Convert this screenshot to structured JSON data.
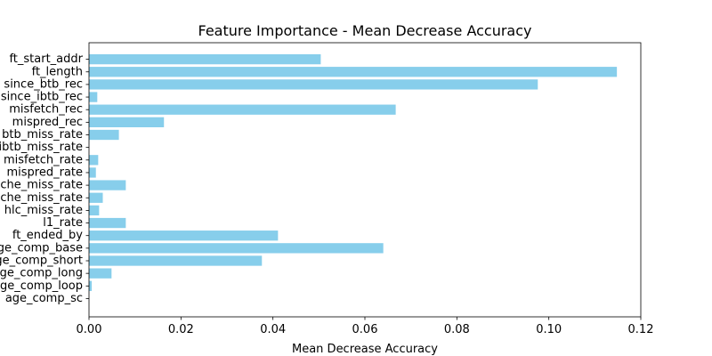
{
  "chart_data": {
    "type": "bar",
    "orientation": "horizontal",
    "title": "Feature Importance - Mean Decrease Accuracy",
    "xlabel": "Mean Decrease Accuracy",
    "ylabel": "",
    "categories": [
      "ft_start_addr",
      "ft_length",
      "since_btb_rec",
      "since_ibtb_rec",
      "misfetch_rec",
      "mispred_rec",
      "btb_miss_rate",
      "ibtb_miss_rate",
      "misfetch_rate",
      "mispred_rate",
      "cache_miss_rate",
      "cache_miss_rate",
      "hlc_miss_rate",
      "l1_rate",
      "ft_ended_by",
      "age_comp_base",
      "age_comp_short",
      "age_comp_long",
      "age_comp_loop",
      "age_comp_sc"
    ],
    "values": [
      0.0504,
      0.1148,
      0.0976,
      0.0018,
      0.0667,
      0.0163,
      0.0065,
      0.0,
      0.002,
      0.0015,
      0.008,
      0.003,
      0.0022,
      0.008,
      0.0411,
      0.064,
      0.0376,
      0.0049,
      0.0006,
      0.0
    ],
    "xlim": [
      0.0,
      0.12
    ],
    "xticks": [
      0.0,
      0.02,
      0.04,
      0.06,
      0.08,
      0.1,
      0.12
    ],
    "xtick_labels": [
      "0.00",
      "0.02",
      "0.04",
      "0.06",
      "0.08",
      "0.10",
      "0.12"
    ],
    "bar_color": "#87ceeb",
    "grid": false,
    "legend": false
  }
}
